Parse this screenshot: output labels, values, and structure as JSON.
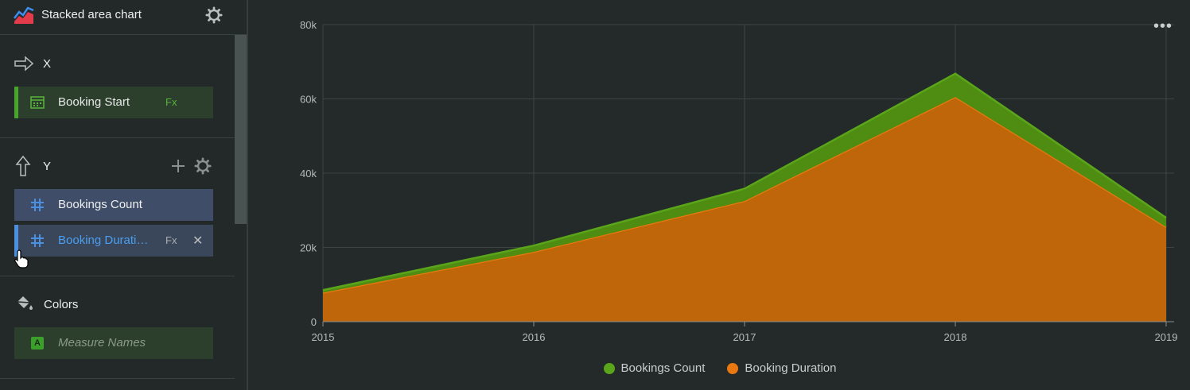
{
  "panel": {
    "title": "Stacked area chart",
    "x_section": {
      "label": "X",
      "field": "Booking Start",
      "fx": "Fx"
    },
    "y_section": {
      "label": "Y",
      "fields": [
        {
          "label": "Bookings Count"
        },
        {
          "label": "Booking Duration",
          "display": "Booking Durati…",
          "fx": "Fx",
          "close": "✕"
        }
      ]
    },
    "colors_section": {
      "label": "Colors",
      "field": "Measure Names",
      "badge": "A"
    }
  },
  "chart_data": {
    "type": "area",
    "stacked": true,
    "x": [
      2015,
      2016,
      2017,
      2018,
      2019
    ],
    "series": [
      {
        "name": "Booking Duration",
        "color": "#e8780f",
        "values": [
          7800,
          18800,
          32500,
          60500,
          25500
        ]
      },
      {
        "name": "Bookings Count",
        "color": "#5aa51a",
        "values": [
          700,
          1700,
          3300,
          6300,
          2500
        ]
      }
    ],
    "y_ticks": [
      "0",
      "20k",
      "40k",
      "60k",
      "80k"
    ],
    "ylim": [
      0,
      80000
    ],
    "x_ticks": [
      "2015",
      "2016",
      "2017",
      "2018",
      "2019"
    ],
    "grid": true,
    "legend": [
      {
        "name": "Bookings Count",
        "color": "#5aa51a"
      },
      {
        "name": "Booking Duration",
        "color": "#e8780f"
      }
    ],
    "legend_position": "bottom"
  },
  "colors": {
    "accent_green": "#48a52b",
    "accent_blue": "#4a8fe0",
    "background": "#242a2a"
  }
}
